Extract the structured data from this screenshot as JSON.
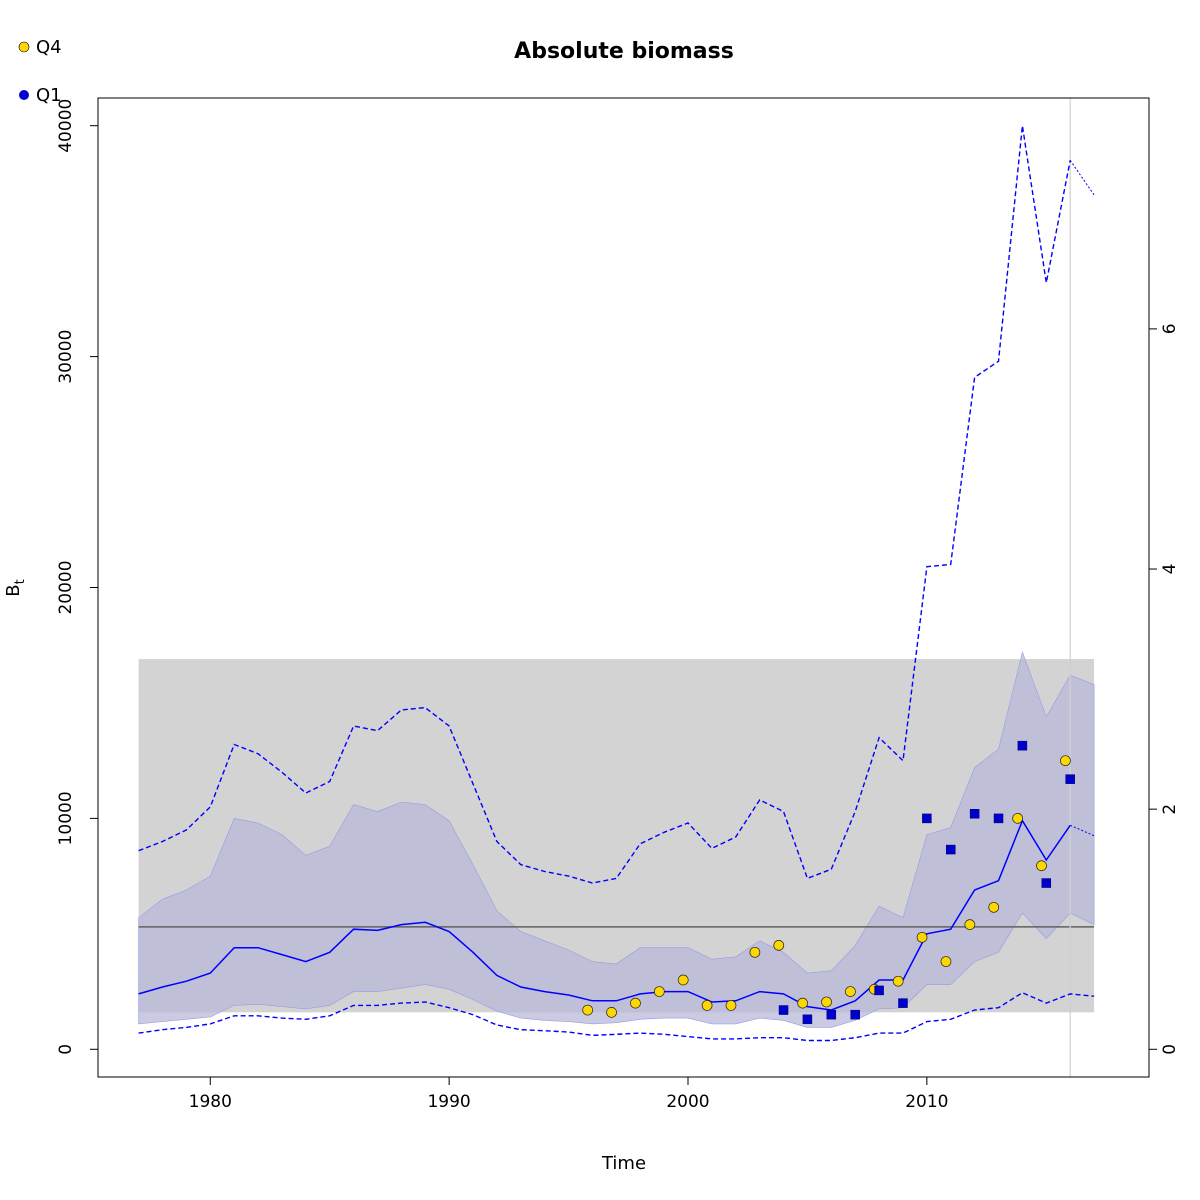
{
  "chart_data": {
    "type": "line",
    "title": "Absolute biomass",
    "xlabel": "Time",
    "ylabel": "B",
    "ylabel_subscript": "t",
    "xlim": [
      1975.3,
      2019.3
    ],
    "ylim": [
      -1200,
      41200
    ],
    "x_ticks": [
      1980,
      1990,
      2000,
      2010
    ],
    "y_ticks": [
      0,
      10000,
      20000,
      30000,
      40000
    ],
    "y2_ticks": [
      0,
      2,
      4,
      6
    ],
    "y2_per_unit": 5200,
    "grid": false,
    "legend_position": "top-left",
    "reference_line": 5300,
    "reference_band": {
      "x": [
        1977,
        2017
      ],
      "y": [
        1600,
        16900
      ]
    },
    "last_obs_year": 2016,
    "colors": {
      "estimate": "#0000ff",
      "ci": "#0000ff",
      "band_fill": "#b8b8d8",
      "ref_band": "#d3d3d3",
      "ref_line": "#606060",
      "q4": "#ffd700",
      "q1": "#0000cd",
      "vline": "#d0d0d0"
    },
    "series": [
      {
        "name": "Q4",
        "shape": "circle",
        "points": [
          [
            1995.8,
            1700
          ],
          [
            1996.8,
            1600
          ],
          [
            1997.8,
            2000
          ],
          [
            1998.8,
            2500
          ],
          [
            1999.8,
            3000
          ],
          [
            2000.8,
            1900
          ],
          [
            2001.8,
            1900
          ],
          [
            2002.8,
            4200
          ],
          [
            2003.8,
            4500
          ],
          [
            2004.8,
            2000
          ],
          [
            2005.8,
            2050
          ],
          [
            2006.8,
            2500
          ],
          [
            2007.8,
            2600
          ],
          [
            2008.8,
            2950
          ],
          [
            2009.8,
            4850
          ],
          [
            2010.8,
            3800
          ],
          [
            2011.8,
            5400
          ],
          [
            2012.8,
            6150
          ],
          [
            2013.8,
            10000
          ],
          [
            2014.8,
            7950
          ],
          [
            2015.8,
            12500
          ]
        ]
      },
      {
        "name": "Q1",
        "shape": "square",
        "points": [
          [
            2004,
            1700
          ],
          [
            2005,
            1300
          ],
          [
            2006,
            1500
          ],
          [
            2007,
            1500
          ],
          [
            2008,
            2550
          ],
          [
            2009,
            2000
          ],
          [
            2010,
            10000
          ],
          [
            2011,
            8650
          ],
          [
            2012,
            10200
          ],
          [
            2013,
            10000
          ],
          [
            2014,
            13150
          ],
          [
            2015,
            7200
          ],
          [
            2016,
            11700
          ]
        ]
      }
    ],
    "estimate": [
      [
        1977,
        2400
      ],
      [
        1978,
        2700
      ],
      [
        1979,
        2950
      ],
      [
        1980,
        3300
      ],
      [
        1981,
        4400
      ],
      [
        1982,
        4400
      ],
      [
        1983,
        4100
      ],
      [
        1984,
        3800
      ],
      [
        1985,
        4200
      ],
      [
        1986,
        5200
      ],
      [
        1987,
        5150
      ],
      [
        1988,
        5400
      ],
      [
        1989,
        5500
      ],
      [
        1990,
        5100
      ],
      [
        1991,
        4200
      ],
      [
        1992,
        3200
      ],
      [
        1993,
        2700
      ],
      [
        1994,
        2500
      ],
      [
        1995,
        2350
      ],
      [
        1996,
        2100
      ],
      [
        1997,
        2100
      ],
      [
        1998,
        2400
      ],
      [
        1999,
        2500
      ],
      [
        2000,
        2500
      ],
      [
        2001,
        2050
      ],
      [
        2002,
        2100
      ],
      [
        2003,
        2500
      ],
      [
        2004,
        2400
      ],
      [
        2005,
        1850
      ],
      [
        2006,
        1700
      ],
      [
        2007,
        2100
      ],
      [
        2008,
        3000
      ],
      [
        2009,
        3000
      ],
      [
        2010,
        5000
      ],
      [
        2011,
        5200
      ],
      [
        2012,
        6900
      ],
      [
        2013,
        7300
      ],
      [
        2014,
        9900
      ],
      [
        2015,
        8200
      ],
      [
        2016,
        9700
      ]
    ],
    "estimate_forecast": [
      [
        2016,
        9700
      ],
      [
        2017,
        9250
      ]
    ],
    "band_upper": [
      [
        1977,
        5700
      ],
      [
        1978,
        6500
      ],
      [
        1979,
        6900
      ],
      [
        1980,
        7500
      ],
      [
        1981,
        10000
      ],
      [
        1982,
        9800
      ],
      [
        1983,
        9300
      ],
      [
        1984,
        8400
      ],
      [
        1985,
        8800
      ],
      [
        1986,
        10600
      ],
      [
        1987,
        10300
      ],
      [
        1988,
        10700
      ],
      [
        1989,
        10600
      ],
      [
        1990,
        9900
      ],
      [
        1991,
        8000
      ],
      [
        1992,
        6000
      ],
      [
        1993,
        5100
      ],
      [
        1994,
        4700
      ],
      [
        1995,
        4300
      ],
      [
        1996,
        3800
      ],
      [
        1997,
        3700
      ],
      [
        1998,
        4400
      ],
      [
        1999,
        4400
      ],
      [
        2000,
        4400
      ],
      [
        2001,
        3900
      ],
      [
        2002,
        4000
      ],
      [
        2003,
        4700
      ],
      [
        2004,
        4200
      ],
      [
        2005,
        3300
      ],
      [
        2006,
        3400
      ],
      [
        2007,
        4500
      ],
      [
        2008,
        6200
      ],
      [
        2009,
        5700
      ],
      [
        2010,
        9300
      ],
      [
        2011,
        9600
      ],
      [
        2012,
        12200
      ],
      [
        2013,
        13000
      ],
      [
        2014,
        17200
      ],
      [
        2015,
        14400
      ],
      [
        2016,
        16200
      ],
      [
        2017,
        15800
      ]
    ],
    "band_lower": [
      [
        1977,
        1100
      ],
      [
        1978,
        1200
      ],
      [
        1979,
        1300
      ],
      [
        1980,
        1400
      ],
      [
        1981,
        1900
      ],
      [
        1982,
        1950
      ],
      [
        1983,
        1850
      ],
      [
        1984,
        1750
      ],
      [
        1985,
        1900
      ],
      [
        1986,
        2500
      ],
      [
        1987,
        2500
      ],
      [
        1988,
        2650
      ],
      [
        1989,
        2800
      ],
      [
        1990,
        2600
      ],
      [
        1991,
        2150
      ],
      [
        1992,
        1650
      ],
      [
        1993,
        1350
      ],
      [
        1994,
        1250
      ],
      [
        1995,
        1200
      ],
      [
        1996,
        1100
      ],
      [
        1997,
        1150
      ],
      [
        1998,
        1300
      ],
      [
        1999,
        1350
      ],
      [
        2000,
        1350
      ],
      [
        2001,
        1100
      ],
      [
        2002,
        1100
      ],
      [
        2003,
        1350
      ],
      [
        2004,
        1250
      ],
      [
        2005,
        950
      ],
      [
        2006,
        950
      ],
      [
        2007,
        1250
      ],
      [
        2008,
        1750
      ],
      [
        2009,
        1800
      ],
      [
        2010,
        2800
      ],
      [
        2011,
        2800
      ],
      [
        2012,
        3800
      ],
      [
        2013,
        4200
      ],
      [
        2014,
        5900
      ],
      [
        2015,
        4800
      ],
      [
        2016,
        5900
      ],
      [
        2017,
        5400
      ]
    ],
    "ci_upper": [
      [
        1977,
        8600
      ],
      [
        1978,
        9000
      ],
      [
        1979,
        9500
      ],
      [
        1980,
        10500
      ],
      [
        1981,
        13200
      ],
      [
        1982,
        12800
      ],
      [
        1983,
        12000
      ],
      [
        1984,
        11100
      ],
      [
        1985,
        11600
      ],
      [
        1986,
        14000
      ],
      [
        1987,
        13800
      ],
      [
        1988,
        14700
      ],
      [
        1989,
        14800
      ],
      [
        1990,
        14000
      ],
      [
        1991,
        11500
      ],
      [
        1992,
        9000
      ],
      [
        1993,
        8000
      ],
      [
        1994,
        7700
      ],
      [
        1995,
        7500
      ],
      [
        1996,
        7200
      ],
      [
        1997,
        7400
      ],
      [
        1998,
        8900
      ],
      [
        1999,
        9400
      ],
      [
        2000,
        9800
      ],
      [
        2001,
        8700
      ],
      [
        2002,
        9200
      ],
      [
        2003,
        10800
      ],
      [
        2004,
        10300
      ],
      [
        2005,
        7400
      ],
      [
        2006,
        7800
      ],
      [
        2007,
        10300
      ],
      [
        2008,
        13500
      ],
      [
        2009,
        12500
      ],
      [
        2010,
        20900
      ],
      [
        2011,
        21000
      ],
      [
        2012,
        29100
      ],
      [
        2013,
        29800
      ],
      [
        2014,
        40000
      ],
      [
        2015,
        33200
      ],
      [
        2016,
        38500
      ]
    ],
    "ci_upper_forecast": [
      [
        2016,
        38500
      ],
      [
        2017,
        37000
      ]
    ],
    "ci_lower": [
      [
        1977,
        700
      ],
      [
        1978,
        850
      ],
      [
        1979,
        950
      ],
      [
        1980,
        1100
      ],
      [
        1981,
        1450
      ],
      [
        1982,
        1450
      ],
      [
        1983,
        1350
      ],
      [
        1984,
        1300
      ],
      [
        1985,
        1450
      ],
      [
        1986,
        1900
      ],
      [
        1987,
        1900
      ],
      [
        1988,
        2000
      ],
      [
        1989,
        2050
      ],
      [
        1990,
        1800
      ],
      [
        1991,
        1500
      ],
      [
        1992,
        1050
      ],
      [
        1993,
        850
      ],
      [
        1994,
        800
      ],
      [
        1995,
        750
      ],
      [
        1996,
        600
      ],
      [
        1997,
        650
      ],
      [
        1998,
        700
      ],
      [
        1999,
        650
      ],
      [
        2000,
        550
      ],
      [
        2001,
        450
      ],
      [
        2002,
        450
      ],
      [
        2003,
        500
      ],
      [
        2004,
        500
      ],
      [
        2005,
        380
      ],
      [
        2006,
        380
      ],
      [
        2007,
        500
      ],
      [
        2008,
        700
      ],
      [
        2009,
        700
      ],
      [
        2010,
        1200
      ],
      [
        2011,
        1300
      ],
      [
        2012,
        1700
      ],
      [
        2013,
        1800
      ],
      [
        2014,
        2450
      ],
      [
        2015,
        2000
      ],
      [
        2016,
        2400
      ],
      [
        2017,
        2300
      ]
    ]
  }
}
